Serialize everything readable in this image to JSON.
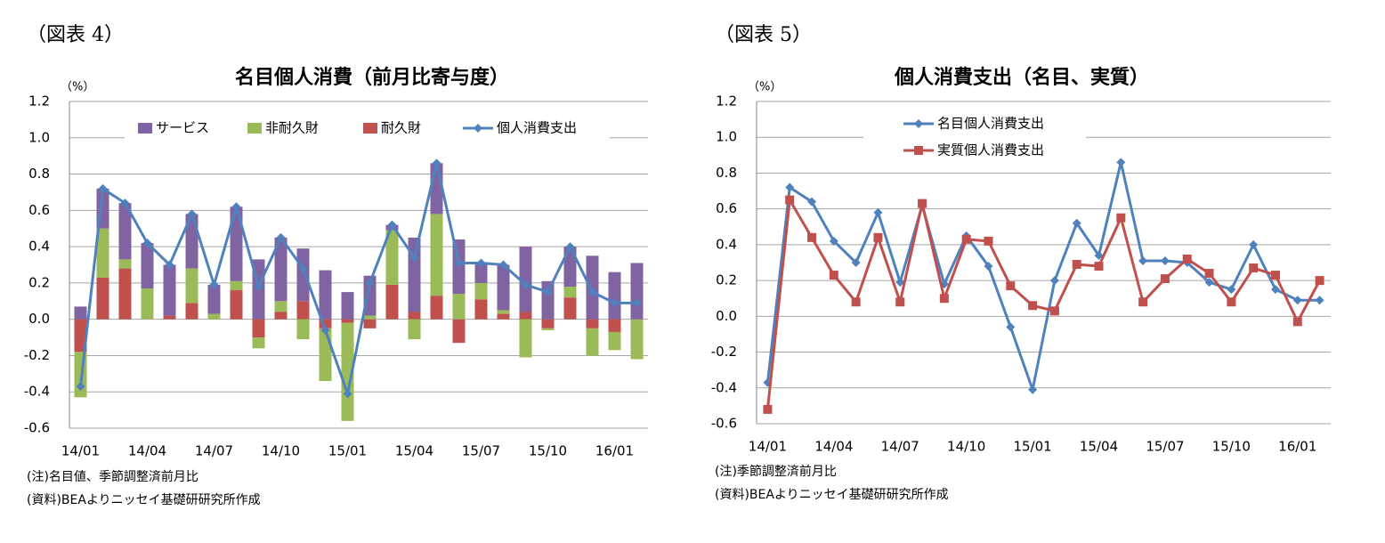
{
  "chart_data": [
    {
      "type": "bar",
      "stacked": true,
      "figure_label": "（図表 4）",
      "title": "名目個人消費（前月比寄与度）",
      "unit": "（%）",
      "categories": [
        "14/01",
        null,
        null,
        "14/04",
        null,
        null,
        "14/07",
        null,
        null,
        "14/10",
        null,
        null,
        "15/01",
        null,
        null,
        "15/04",
        null,
        null,
        "15/07",
        null,
        null,
        "15/10",
        null,
        null,
        "16/01",
        null
      ],
      "series": [
        {
          "name": "サービス",
          "color": "#8064a2",
          "values": [
            0.07,
            0.22,
            0.31,
            0.25,
            0.28,
            0.3,
            0.16,
            0.41,
            0.33,
            0.35,
            0.29,
            0.27,
            0.15,
            0.22,
            0.03,
            0.41,
            0.28,
            0.3,
            0.11,
            0.25,
            0.36,
            0.21,
            0.22,
            0.35,
            0.26,
            0.31
          ]
        },
        {
          "name": "非耐久財",
          "color": "#9bbb59",
          "values": [
            -0.25,
            0.27,
            0.05,
            0.17,
            0.0,
            0.19,
            0.03,
            0.05,
            -0.06,
            0.06,
            -0.11,
            -0.29,
            -0.54,
            0.02,
            0.3,
            -0.11,
            0.45,
            0.14,
            0.09,
            0.02,
            -0.21,
            -0.01,
            0.06,
            -0.15,
            -0.1,
            -0.22
          ]
        },
        {
          "name": "耐久財",
          "color": "#c0504d",
          "values": [
            -0.18,
            0.23,
            0.28,
            0.0,
            0.02,
            0.09,
            0.0,
            0.16,
            -0.1,
            0.04,
            0.1,
            -0.05,
            -0.02,
            -0.05,
            0.19,
            0.04,
            0.13,
            -0.13,
            0.11,
            0.03,
            0.04,
            -0.05,
            0.12,
            -0.05,
            -0.07,
            0.0
          ]
        },
        {
          "name": "個人消費支出",
          "type": "line",
          "marker": "diamond",
          "color": "#4f81bd",
          "values": [
            -0.37,
            0.72,
            0.64,
            0.42,
            0.3,
            0.58,
            0.19,
            0.62,
            0.18,
            0.45,
            0.28,
            -0.06,
            -0.41,
            0.2,
            0.52,
            0.34,
            0.86,
            0.31,
            0.31,
            0.3,
            0.19,
            0.15,
            0.4,
            0.15,
            0.09,
            0.09
          ]
        }
      ],
      "ylim": [
        -0.6,
        1.2
      ],
      "yticks": [
        -0.6,
        -0.4,
        -0.2,
        {
          "value": 0,
          "label": "0.0"
        },
        0.2,
        0.4,
        0.6,
        0.8,
        {
          "value": 1,
          "label": "1.0"
        },
        1.2
      ],
      "grid": true,
      "legend": "top",
      "notes": [
        "(注)名目値、季節調整済前月比",
        "(資料)BEAよりニッセイ基礎研研究所作成"
      ]
    },
    {
      "type": "line",
      "figure_label": "（図表 5）",
      "title": "個人消費支出（名目、実質）",
      "unit": "（%）",
      "categories": [
        "14/01",
        null,
        null,
        "14/04",
        null,
        null,
        "14/07",
        null,
        null,
        "14/10",
        null,
        null,
        "15/01",
        null,
        null,
        "15/04",
        null,
        null,
        "15/07",
        null,
        null,
        "15/10",
        null,
        null,
        "16/01",
        null
      ],
      "series": [
        {
          "name": "名目個人消費支出",
          "marker": "diamond",
          "color": "#4f81bd",
          "values": [
            -0.37,
            0.72,
            0.64,
            0.42,
            0.3,
            0.58,
            0.19,
            0.62,
            0.18,
            0.45,
            0.28,
            -0.06,
            -0.41,
            0.2,
            0.52,
            0.34,
            0.86,
            0.31,
            0.31,
            0.3,
            0.19,
            0.15,
            0.4,
            0.15,
            0.09,
            0.09
          ]
        },
        {
          "name": "実質個人消費支出",
          "marker": "square",
          "color": "#c0504d",
          "values": [
            -0.52,
            0.65,
            0.44,
            0.23,
            0.08,
            0.44,
            0.08,
            0.63,
            0.1,
            0.43,
            0.42,
            0.17,
            0.06,
            0.03,
            0.29,
            0.28,
            0.55,
            0.08,
            0.21,
            0.32,
            0.24,
            0.08,
            0.27,
            0.23,
            -0.03,
            0.2
          ]
        }
      ],
      "ylim": [
        -0.6,
        1.2
      ],
      "yticks": [
        -0.6,
        -0.4,
        -0.2,
        {
          "value": 0,
          "label": "0.0"
        },
        0.2,
        0.4,
        0.6,
        0.8,
        {
          "value": 1,
          "label": "1.0"
        },
        1.2
      ],
      "grid": true,
      "legend": "top-left",
      "notes": [
        "(注)季節調整済前月比",
        "(資料)BEAよりニッセイ基礎研研究所作成"
      ]
    }
  ]
}
